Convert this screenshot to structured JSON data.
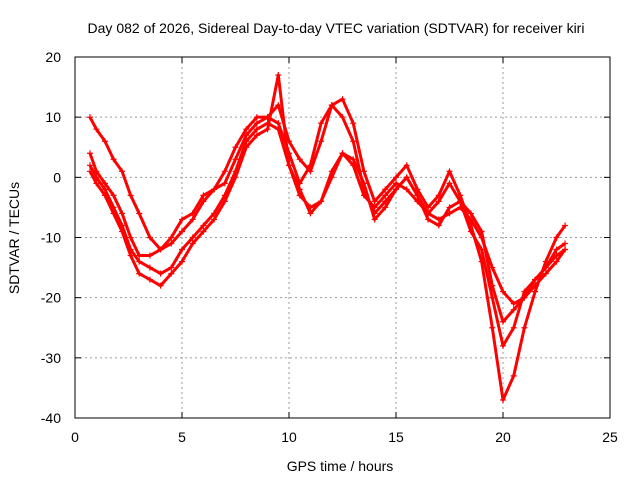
{
  "chart_data": {
    "type": "scatter",
    "title": "Day 082 of 2026, Sidereal Day-to-day VTEC variation (SDTVAR) for receiver kiri",
    "xlabel": "GPS time / hours",
    "ylabel": "SDTVAR / TECUs",
    "xlim": [
      0,
      25
    ],
    "ylim": [
      -40,
      20
    ],
    "x_ticks": [
      0,
      5,
      10,
      15,
      20,
      25
    ],
    "y_ticks": [
      -40,
      -30,
      -20,
      -10,
      0,
      10,
      20
    ],
    "x_tick_labels": [
      "0",
      "5",
      "10",
      "15",
      "20",
      "25"
    ],
    "y_tick_labels": [
      "-40",
      "-30",
      "-20",
      "-10",
      "0",
      "10",
      "20"
    ],
    "grid": true,
    "legend": "none",
    "marker": "plus",
    "color": "#ff0000",
    "series": [
      {
        "x": [
          0.7,
          1.0,
          1.4,
          1.8,
          2.2,
          2.6,
          3.0,
          3.5,
          4.0,
          4.5,
          5.0,
          5.5,
          6.0,
          6.5,
          7.0,
          7.5,
          8.0,
          8.5,
          9.0,
          9.5,
          10.0,
          10.5,
          11.0,
          11.5,
          12.0,
          12.5,
          13.0,
          13.5,
          14.0,
          14.5,
          15.0,
          15.5,
          16.0,
          16.5,
          17.0,
          17.5,
          18.0,
          18.5,
          19.0,
          19.5,
          20.0,
          20.5,
          21.0,
          21.5,
          22.0,
          22.5,
          22.9
        ],
        "y": [
          2,
          0,
          -2,
          -5,
          -8,
          -12,
          -14,
          -15,
          -16,
          -15,
          -12,
          -10,
          -8,
          -6,
          -3,
          1,
          6,
          8,
          9,
          8,
          2,
          -3,
          -5,
          -4,
          0,
          4,
          2,
          -3,
          -5,
          -3,
          -1,
          -2,
          -4,
          -6,
          -7,
          -6,
          -5,
          -7,
          -10,
          -15,
          -19,
          -21,
          -20,
          -18,
          -16,
          -14,
          -12
        ]
      },
      {
        "x": [
          0.7,
          1.0,
          1.4,
          1.8,
          2.2,
          2.6,
          3.0,
          3.5,
          4.0,
          4.5,
          5.0,
          5.5,
          6.0,
          6.5,
          7.0,
          7.5,
          8.0,
          8.5,
          9.0,
          9.5,
          10.0,
          10.5,
          11.0,
          11.5,
          12.0,
          12.5,
          13.0,
          13.5,
          14.0,
          14.5,
          15.0,
          15.5,
          16.0,
          16.5,
          17.0,
          17.5,
          18.0,
          18.5,
          19.0,
          19.5,
          20.0,
          20.5,
          21.0,
          21.5,
          22.0,
          22.5,
          22.9
        ],
        "y": [
          10,
          8,
          6,
          3,
          1,
          -3,
          -6,
          -10,
          -12,
          -11,
          -9,
          -7,
          -4,
          -2,
          1,
          5,
          8,
          10,
          10,
          12,
          6,
          3,
          1,
          6,
          12,
          13,
          9,
          1,
          -4,
          -2,
          0,
          2,
          -2,
          -5,
          -3,
          1,
          -3,
          -8,
          -14,
          -25,
          -37,
          -33,
          -25,
          -19,
          -14,
          -10,
          -8
        ]
      },
      {
        "x": [
          0.7,
          1.0,
          1.4,
          1.8,
          2.2,
          2.6,
          3.0,
          3.5,
          4.0,
          4.5,
          5.0,
          5.5,
          6.0,
          6.5,
          7.0,
          7.5,
          8.0,
          8.5,
          9.0,
          9.5,
          10.0,
          10.5,
          11.0,
          11.5,
          12.0,
          12.5,
          13.0,
          13.5,
          14.0,
          14.5,
          15.0,
          15.5,
          16.0,
          16.5,
          17.0,
          17.5,
          18.0,
          18.5,
          19.0,
          19.5,
          20.0,
          20.5,
          21.0,
          21.5,
          22.0,
          22.5,
          22.9
        ],
        "y": [
          4,
          1,
          -1,
          -3,
          -6,
          -10,
          -13,
          -13,
          -12,
          -10,
          -7,
          -6,
          -3,
          -2,
          -1,
          3,
          7,
          9,
          10,
          9,
          4,
          -1,
          2,
          9,
          12,
          10,
          6,
          -2,
          -6,
          -4,
          -2,
          0,
          -3,
          -6,
          -4,
          -1,
          -4,
          -9,
          -12,
          -20,
          -28,
          -25,
          -19,
          -17,
          -15,
          -12,
          -11
        ]
      },
      {
        "x": [
          0.7,
          1.0,
          1.4,
          1.8,
          2.2,
          2.6,
          3.0,
          3.5,
          4.0,
          4.5,
          5.0,
          5.5,
          6.0,
          6.5,
          7.0,
          7.5,
          8.0,
          8.5,
          9.0,
          9.5,
          10.0,
          10.5,
          11.0,
          11.5,
          12.0,
          12.5,
          13.0,
          13.5,
          14.0,
          14.5,
          15.0,
          15.5,
          16.0,
          16.5,
          17.0,
          17.5,
          18.0,
          18.5,
          19.0,
          19.5,
          20.0,
          20.5,
          21.0,
          21.5,
          22.0,
          22.5,
          22.9
        ],
        "y": [
          1,
          -1,
          -3,
          -6,
          -9,
          -13,
          -16,
          -17,
          -18,
          -16,
          -14,
          -11,
          -9,
          -7,
          -4,
          0,
          5,
          7,
          8,
          17,
          2,
          -2,
          -6,
          -4,
          1,
          4,
          3,
          -1,
          -7,
          -5,
          -2,
          0,
          -3,
          -7,
          -8,
          -5,
          -4,
          -6,
          -9,
          -18,
          -24,
          -22,
          -20,
          -17,
          -15,
          -13,
          -12
        ]
      }
    ]
  }
}
